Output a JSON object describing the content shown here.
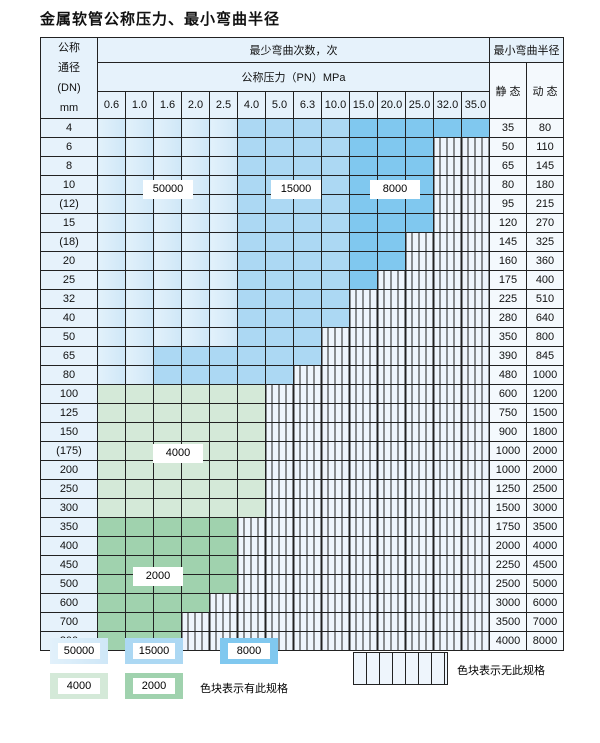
{
  "title": "金属软管公称压力、最小弯曲半径",
  "header": {
    "dn_label": [
      "公称",
      "通径",
      "(DN)",
      "mm"
    ],
    "cycles_label": "最少弯曲次数，次",
    "pressure_label": "公称压力（PN）MPa",
    "radius_label": "最小弯曲半径",
    "static_label": "静 态",
    "dynamic_label": "动 态",
    "pressures": [
      "0.6",
      "1.0",
      "1.6",
      "2.0",
      "2.5",
      "4.0",
      "5.0",
      "6.3",
      "10.0",
      "15.0",
      "20.0",
      "25.0",
      "32.0",
      "35.0"
    ]
  },
  "tier_colors": {
    "a": "#d6ecf9",
    "b": "#acd8f3",
    "c": "#80c8ef",
    "g1": "#d4e9d8",
    "g2": "#a0d2ae",
    "x": "#eef5fc"
  },
  "rows": [
    {
      "dn": "4",
      "static": "35",
      "dynamic": "80",
      "cells": "aaaaabbbbccccc"
    },
    {
      "dn": "6",
      "static": "50",
      "dynamic": "110",
      "cells": "aaaaabbbbcccxx"
    },
    {
      "dn": "8",
      "static": "65",
      "dynamic": "145",
      "cells": "aaaaabbbbcccxx"
    },
    {
      "dn": "10",
      "static": "80",
      "dynamic": "180",
      "cells": "aaaaabbbbcccxx"
    },
    {
      "dn": "(12)",
      "static": "95",
      "dynamic": "215",
      "cells": "aaaaabbbbcccxx"
    },
    {
      "dn": "15",
      "static": "120",
      "dynamic": "270",
      "cells": "aaaaabbbbcccxx"
    },
    {
      "dn": "(18)",
      "static": "145",
      "dynamic": "325",
      "cells": "aaaaabbbbccxxx"
    },
    {
      "dn": "20",
      "static": "160",
      "dynamic": "360",
      "cells": "aaaaabbbbccxxx"
    },
    {
      "dn": "25",
      "static": "175",
      "dynamic": "400",
      "cells": "aaaaabbbbcxxxx"
    },
    {
      "dn": "32",
      "static": "225",
      "dynamic": "510",
      "cells": "aaaaabbbbxxxxx"
    },
    {
      "dn": "40",
      "static": "280",
      "dynamic": "640",
      "cells": "aaaaabbbbxxxxx"
    },
    {
      "dn": "50",
      "static": "350",
      "dynamic": "800",
      "cells": "aaaaabbbxxxxxx"
    },
    {
      "dn": "65",
      "static": "390",
      "dynamic": "845",
      "cells": "aabbbbbbxxxxxx"
    },
    {
      "dn": "80",
      "static": "480",
      "dynamic": "1000",
      "cells": "aabbbbbxxxxxxx"
    },
    {
      "dn": "100",
      "static": "600",
      "dynamic": "1200",
      "cells": "g1g1g1g1g1g1xxxxxxxx"
    },
    {
      "dn": "125",
      "static": "750",
      "dynamic": "1500",
      "cells": "g1g1g1g1g1g1xxxxxxxx"
    },
    {
      "dn": "150",
      "static": "900",
      "dynamic": "1800",
      "cells": "g1g1g1g1g1g1xxxxxxxx"
    },
    {
      "dn": "(175)",
      "static": "1000",
      "dynamic": "2000",
      "cells": "g1g1g1g1g1g1xxxxxxxx"
    },
    {
      "dn": "200",
      "static": "1000",
      "dynamic": "2000",
      "cells": "g1g1g1g1g1g1xxxxxxxx"
    },
    {
      "dn": "250",
      "static": "1250",
      "dynamic": "2500",
      "cells": "g1g1g1g1g1g1xxxxxxxx"
    },
    {
      "dn": "300",
      "static": "1500",
      "dynamic": "3000",
      "cells": "g1g1g1g1g1g1xxxxxxxx"
    },
    {
      "dn": "350",
      "static": "1750",
      "dynamic": "3500",
      "cells": "g2g2g2g2g2xxxxxxxxx"
    },
    {
      "dn": "400",
      "static": "2000",
      "dynamic": "4000",
      "cells": "g2g2g2g2g2xxxxxxxxx"
    },
    {
      "dn": "450",
      "static": "2250",
      "dynamic": "4500",
      "cells": "g2g2g2g2g2xxxxxxxxx"
    },
    {
      "dn": "500",
      "static": "2500",
      "dynamic": "5000",
      "cells": "g2g2g2g2g2xxxxxxxxx"
    },
    {
      "dn": "600",
      "static": "3000",
      "dynamic": "6000",
      "cells": "g2g2g2g2xxxxxxxxxx"
    },
    {
      "dn": "700",
      "static": "3500",
      "dynamic": "7000",
      "cells": "g2g2g2xxxxxxxxxxx"
    },
    {
      "dn": "800",
      "static": "4000",
      "dynamic": "8000",
      "cells": "g2g2g2xxxxxxxxxxx"
    }
  ],
  "region_labels": {
    "a": "50000",
    "b": "15000",
    "c": "8000",
    "g1": "4000",
    "g2": "2000"
  },
  "legend": {
    "items": [
      {
        "tier": "a",
        "label": "50000"
      },
      {
        "tier": "b",
        "label": "15000"
      },
      {
        "tier": "c",
        "label": "8000"
      },
      {
        "tier": "g1",
        "label": "4000"
      },
      {
        "tier": "g2",
        "label": "2000"
      }
    ],
    "has_spec_text": "色块表示有此规格",
    "no_spec_text": "色块表示无此规格"
  }
}
